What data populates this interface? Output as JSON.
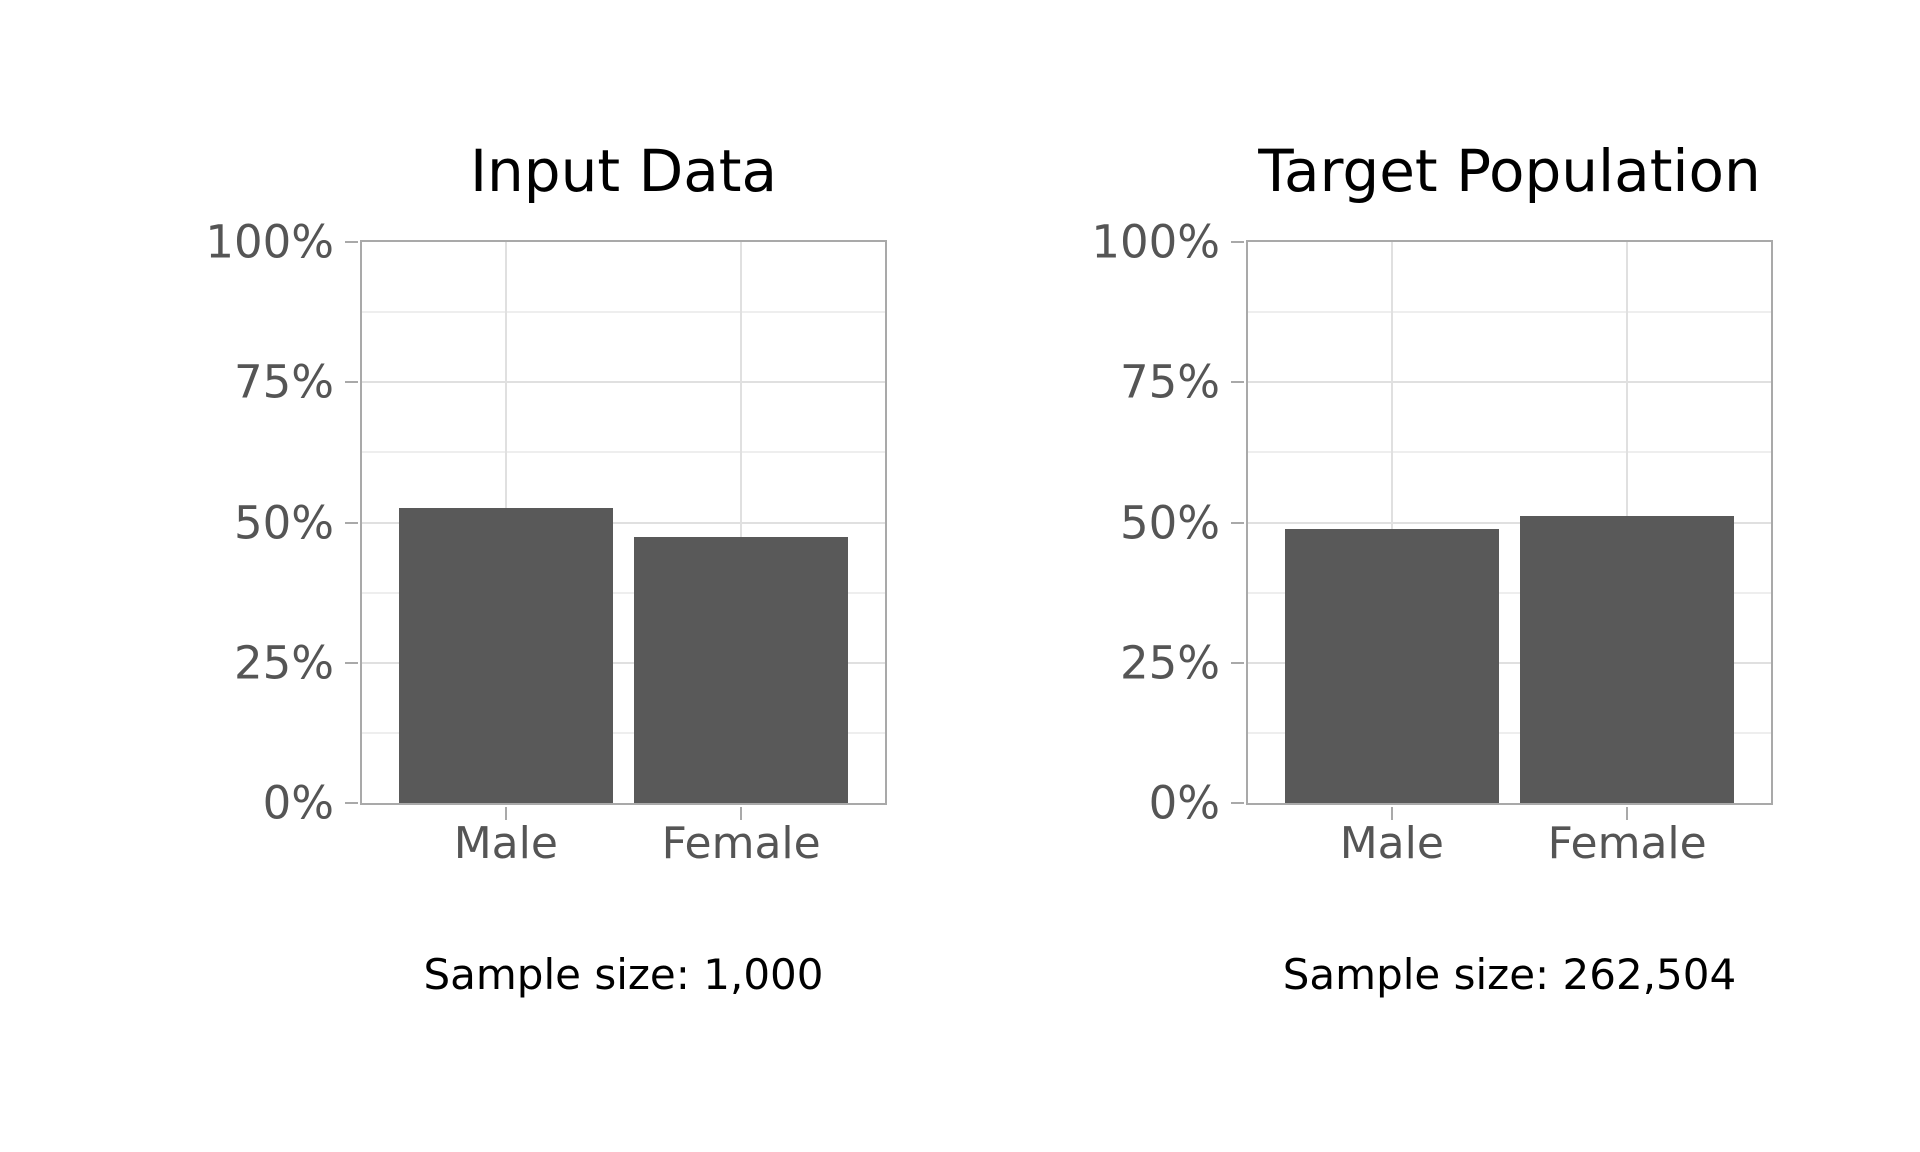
{
  "styles": {
    "bar_color": "#595959",
    "spine_color": "#a9a9a9",
    "grid_major": "#e0e0e0",
    "grid_minor": "#eeeeee",
    "tick_label_color": "#555555",
    "title_color": "#000000",
    "background_color": "#ffffff"
  },
  "chart_data": [
    {
      "type": "bar",
      "title": "Input Data",
      "categories": [
        "Male",
        "Female"
      ],
      "values": [
        52.5,
        47.5
      ],
      "value_unit": "percent",
      "ylim": [
        0,
        100
      ],
      "yticks": [
        {
          "label": "0%",
          "value": 0
        },
        {
          "label": "25%",
          "value": 25
        },
        {
          "label": "50%",
          "value": 50
        },
        {
          "label": "75%",
          "value": 75
        },
        {
          "label": "100%",
          "value": 100
        }
      ],
      "minor_gridlines": [
        12.5,
        37.5,
        62.5,
        87.5
      ],
      "grid": "on",
      "legend": "none",
      "footer": "Sample size: 1,000"
    },
    {
      "type": "bar",
      "title": "Target Population",
      "categories": [
        "Male",
        "Female"
      ],
      "values": [
        48.9,
        51.1
      ],
      "value_unit": "percent",
      "ylim": [
        0,
        100
      ],
      "yticks": [
        {
          "label": "0%",
          "value": 0
        },
        {
          "label": "25%",
          "value": 25
        },
        {
          "label": "50%",
          "value": 50
        },
        {
          "label": "75%",
          "value": 75
        },
        {
          "label": "100%",
          "value": 100
        }
      ],
      "minor_gridlines": [
        12.5,
        37.5,
        62.5,
        87.5
      ],
      "grid": "on",
      "legend": "none",
      "footer": "Sample size: 262,504"
    }
  ]
}
